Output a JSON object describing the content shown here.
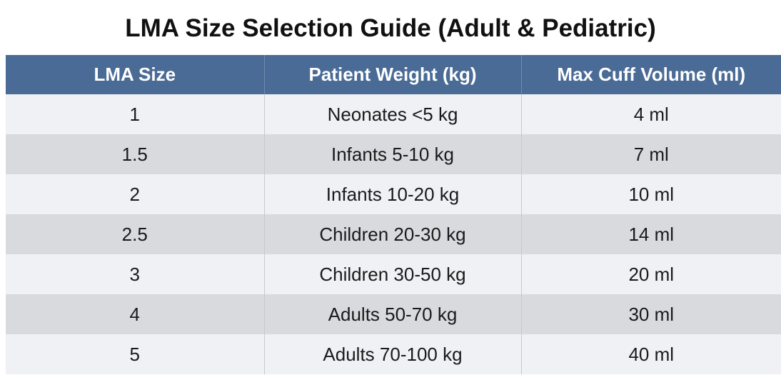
{
  "title": "LMA Size Selection Guide (Adult & Pediatric)",
  "table": {
    "header": [
      "LMA Size",
      "Patient Weight (kg)",
      "Max Cuff Volume (ml)"
    ],
    "rows": [
      [
        "1",
        "Neonates <5 kg",
        "4 ml"
      ],
      [
        "1.5",
        "Infants 5-10 kg",
        "7 ml"
      ],
      [
        "2",
        "Infants 10-20 kg",
        "10 ml"
      ],
      [
        "2.5",
        "Children 20-30 kg",
        "14 ml"
      ],
      [
        "3",
        "Children 30-50 kg",
        "20 ml"
      ],
      [
        "4",
        "Adults 50-70 kg",
        "30 ml"
      ],
      [
        "5",
        "Adults 70-100 kg",
        "40 ml"
      ]
    ]
  }
}
